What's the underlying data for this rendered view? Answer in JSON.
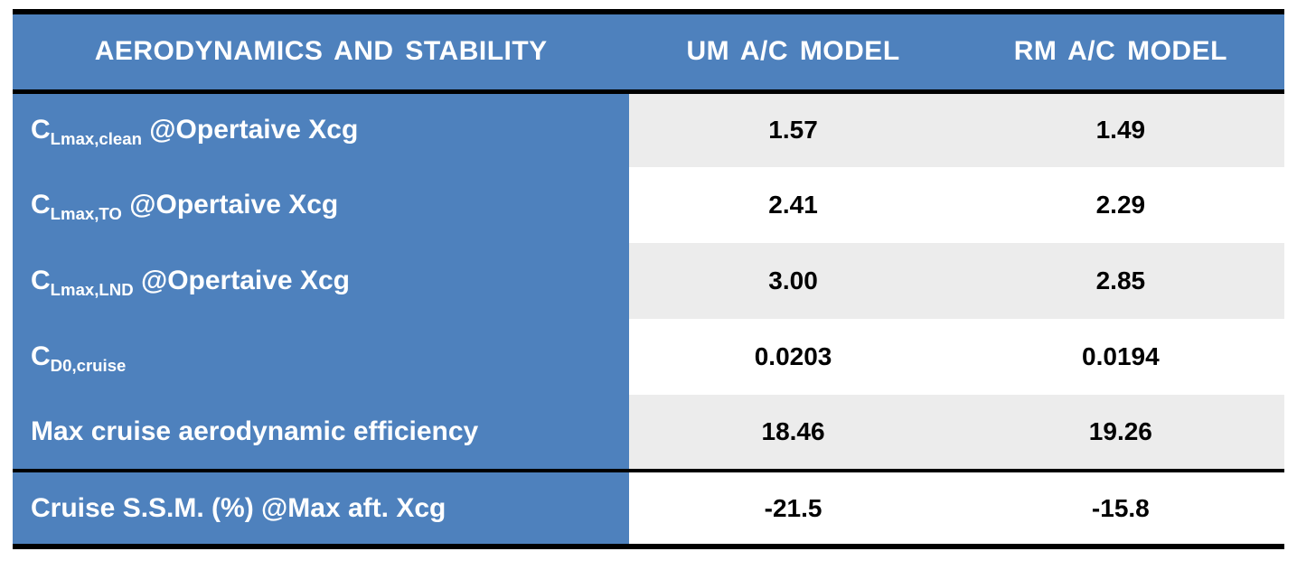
{
  "theme": {
    "header_bg": "#4e81bd",
    "header_text": "#ffffff",
    "row_shade_bg": "#ececec",
    "value_text": "#000000",
    "rule_color": "#000000",
    "page_bg": "#ffffff"
  },
  "table": {
    "title": "AERODYNAMICS AND STABILITY",
    "columns": [
      "UM A/C MODEL",
      "RM A/C MODEL"
    ],
    "rows": [
      {
        "label": [
          {
            "text": "C"
          },
          {
            "text": "Lmax,clean",
            "sub": true
          },
          {
            "text": " @Opertaive Xcg"
          }
        ],
        "values": [
          "1.57",
          "1.49"
        ],
        "shade": true,
        "separator": false
      },
      {
        "label": [
          {
            "text": "C"
          },
          {
            "text": "Lmax,TO",
            "sub": true
          },
          {
            "text": " @Opertaive Xcg"
          }
        ],
        "values": [
          "2.41",
          "2.29"
        ],
        "shade": false,
        "separator": false
      },
      {
        "label": [
          {
            "text": "C"
          },
          {
            "text": "Lmax,LND",
            "sub": true
          },
          {
            "text": " @Opertaive Xcg"
          }
        ],
        "values": [
          "3.00",
          "2.85"
        ],
        "shade": true,
        "separator": false
      },
      {
        "label": [
          {
            "text": "C"
          },
          {
            "text": "D0,cruise",
            "sub": true
          }
        ],
        "values": [
          "0.0203",
          "0.0194"
        ],
        "shade": false,
        "separator": false
      },
      {
        "label": [
          {
            "text": "Max cruise aerodynamic efficiency"
          }
        ],
        "values": [
          "18.46",
          "19.26"
        ],
        "shade": true,
        "separator": false
      },
      {
        "label": [
          {
            "text": "Cruise S.S.M. (%) @Max aft. Xcg"
          }
        ],
        "values": [
          "-21.5",
          "-15.8"
        ],
        "shade": false,
        "separator": true
      }
    ]
  },
  "chart_data": {
    "type": "table",
    "title": "AERODYNAMICS AND STABILITY",
    "columns": [
      "AERODYNAMICS AND STABILITY",
      "UM A/C MODEL",
      "RM A/C MODEL"
    ],
    "rows": [
      [
        "CLmax,clean @Opertaive Xcg",
        1.57,
        1.49
      ],
      [
        "CLmax,TO @Opertaive Xcg",
        2.41,
        2.29
      ],
      [
        "CLmax,LND @Opertaive Xcg",
        3.0,
        2.85
      ],
      [
        "CD0,cruise",
        0.0203,
        0.0194
      ],
      [
        "Max cruise aerodynamic efficiency",
        18.46,
        19.26
      ],
      [
        "Cruise S.S.M. (%) @Max aft. Xcg",
        -21.5,
        -15.8
      ]
    ],
    "layout": {
      "header_fill": "#4e81bd",
      "label_column_fill": "#4e81bd",
      "alternating_row_fill": "#ececec",
      "thick_rules": [
        "top",
        "below-header",
        "above-last-row",
        "bottom"
      ]
    }
  }
}
